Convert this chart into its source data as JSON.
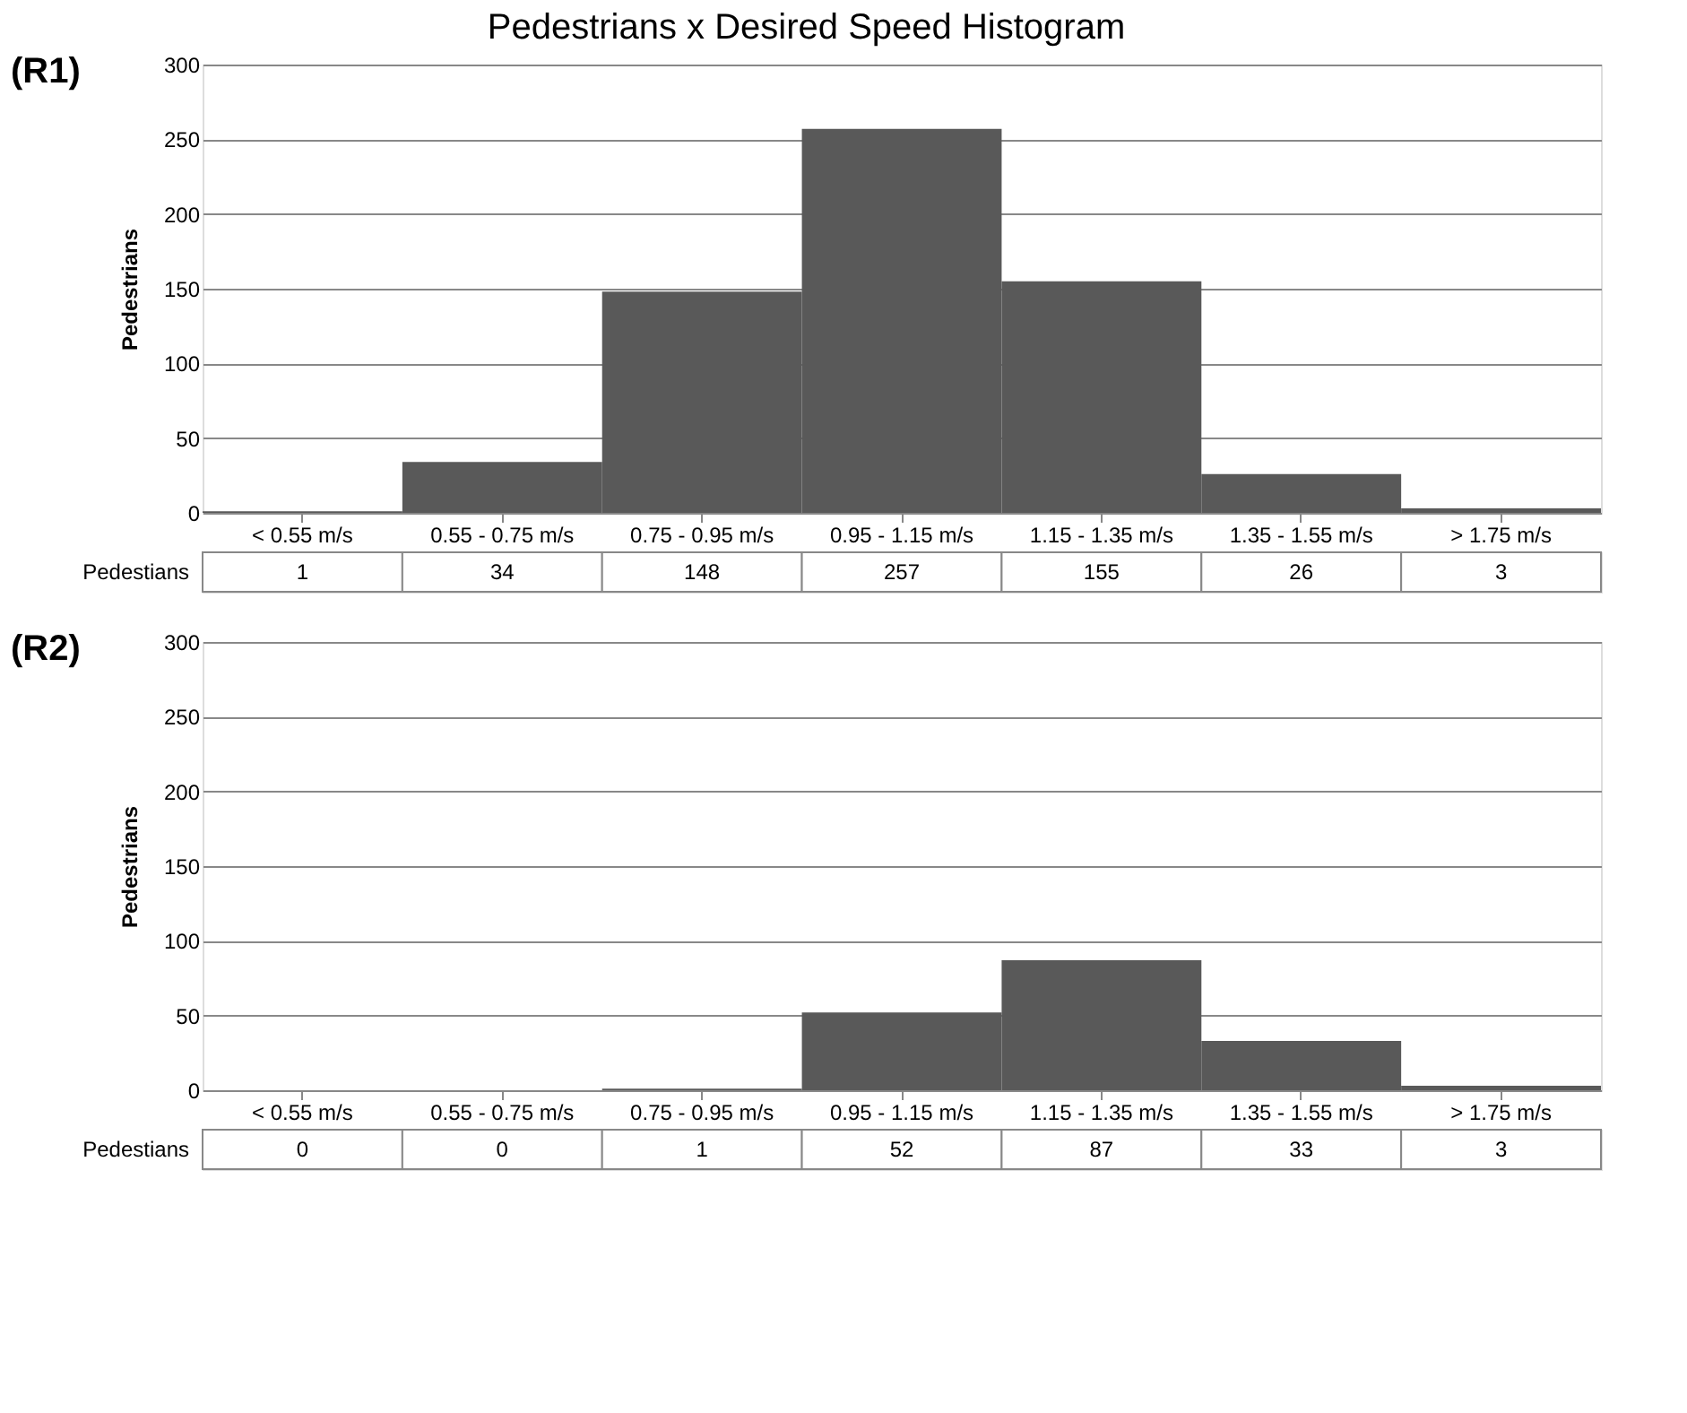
{
  "chart_data": [
    {
      "type": "bar",
      "title": "Pedestrians x Desired Speed Histogram",
      "annotations": [
        "(R1)"
      ],
      "ylabel": "Pedestrians",
      "categories": [
        "< 0.55 m/s",
        "0.55 - 0.75 m/s",
        "0.75 - 0.95 m/s",
        "0.95 - 1.15 m/s",
        "1.15 - 1.35 m/s",
        "1.35 - 1.55 m/s",
        "> 1.75 m/s"
      ],
      "series": [
        {
          "name": "Pedestians",
          "color": "#595959",
          "values": [
            1,
            34,
            148,
            257,
            155,
            26,
            3
          ]
        }
      ],
      "ylim": [
        0,
        300
      ],
      "yticks": [
        0,
        50,
        100,
        150,
        200,
        250,
        300
      ],
      "grid": "y",
      "data_labels": true
    },
    {
      "type": "bar",
      "annotations": [
        "(R2)"
      ],
      "ylabel": "Pedestrians",
      "categories": [
        "< 0.55 m/s",
        "0.55 - 0.75 m/s",
        "0.75 - 0.95 m/s",
        "0.95 - 1.15 m/s",
        "1.15 - 1.35 m/s",
        "1.35 - 1.55 m/s",
        "> 1.75 m/s"
      ],
      "series": [
        {
          "name": "Pedestians",
          "color": "#595959",
          "values": [
            0,
            0,
            1,
            52,
            87,
            33,
            3
          ]
        }
      ],
      "ylim": [
        0,
        300
      ],
      "yticks": [
        0,
        50,
        100,
        150,
        200,
        250,
        300
      ],
      "grid": "y",
      "data_labels": true
    }
  ]
}
